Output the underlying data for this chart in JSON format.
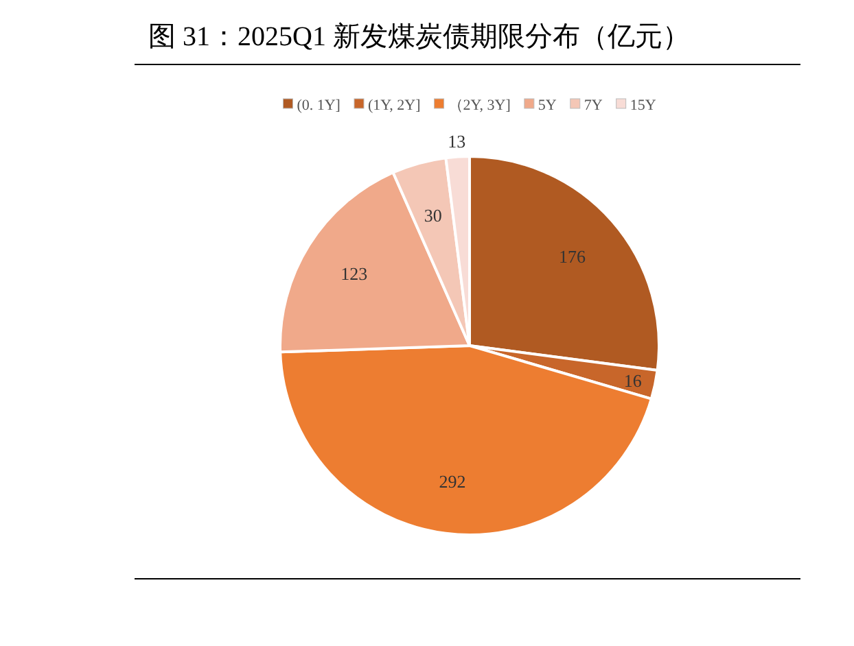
{
  "chart_data": {
    "type": "pie",
    "title": "图 31：2025Q1 新发煤炭债期限分布（亿元）",
    "categories": [
      "(0. 1Y]",
      "(1Y, 2Y]",
      "（2Y, 3Y]",
      "5Y",
      "7Y",
      "15Y"
    ],
    "values": [
      176,
      16,
      292,
      123,
      30,
      13
    ],
    "colors": [
      "#b05a22",
      "#c8662a",
      "#ed7d31",
      "#f0a98a",
      "#f4c7b6",
      "#f8dcd6"
    ],
    "data_labels": true,
    "legend": "top"
  }
}
